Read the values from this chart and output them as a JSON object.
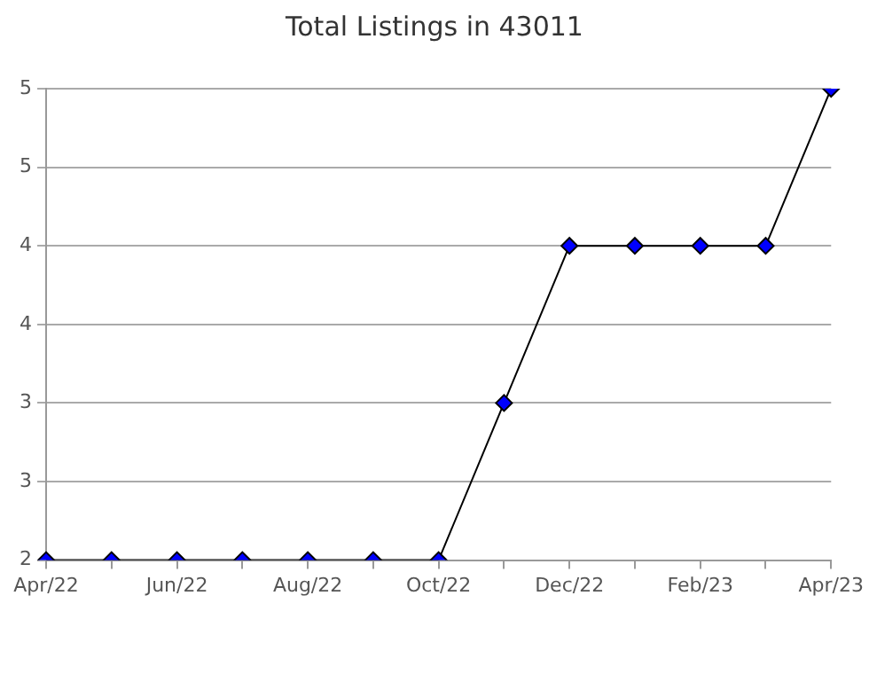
{
  "chart_data": {
    "type": "line",
    "title": "Total Listings in 43011",
    "categories": [
      "Apr/22",
      null,
      "Jun/22",
      null,
      "Aug/22",
      null,
      "Oct/22",
      null,
      "Dec/22",
      null,
      "Feb/23",
      null,
      "Apr/23"
    ],
    "series": [
      {
        "color": "#0000ff",
        "values": [
          2,
          2,
          2,
          2,
          2,
          2,
          2,
          3,
          4,
          4,
          4,
          4,
          5
        ]
      }
    ],
    "ylim": [
      2,
      5
    ],
    "yticks": [
      2,
      {
        "value": 2.5,
        "label": "3"
      },
      3,
      {
        "value": 3.5,
        "label": "4"
      },
      4,
      {
        "value": 4.5,
        "label": "5"
      },
      5
    ],
    "grid": "y",
    "legend": false,
    "marker": "diamond",
    "line_style": "solid"
  }
}
